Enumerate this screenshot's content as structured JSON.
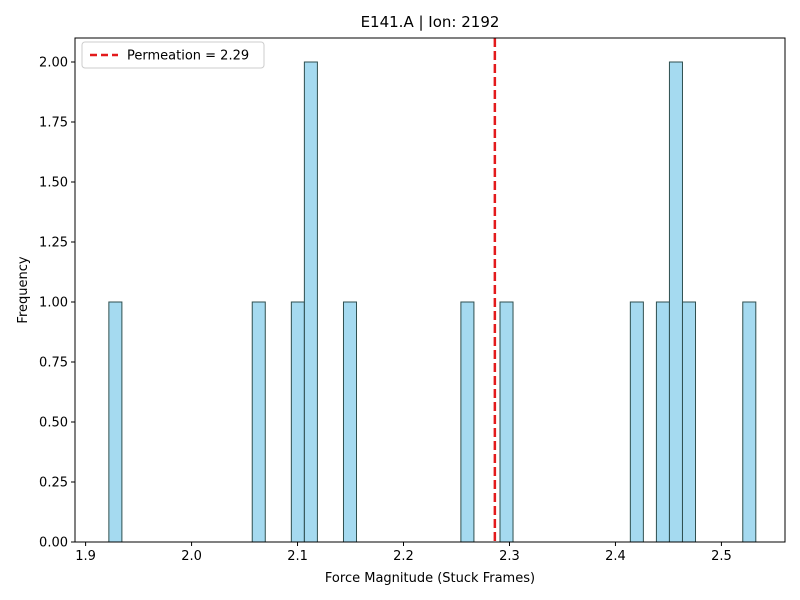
{
  "chart_data": {
    "type": "bar",
    "subtype": "histogram",
    "title": "E141.A | Ion: 2192",
    "xlabel": "Force Magnitude (Stuck Frames)",
    "ylabel": "Frequency",
    "xlim": [
      1.89,
      2.56
    ],
    "ylim": [
      0.0,
      2.1
    ],
    "x_ticks": [
      "1.9",
      "2.0",
      "2.1",
      "2.2",
      "2.3",
      "2.4",
      "2.5"
    ],
    "y_ticks": [
      "0.00",
      "0.25",
      "0.50",
      "0.75",
      "1.00",
      "1.25",
      "1.50",
      "1.75",
      "2.00"
    ],
    "bin_width": 0.0123,
    "bars": [
      {
        "x": 1.9281,
        "count": 1
      },
      {
        "x": 2.0634,
        "count": 1
      },
      {
        "x": 2.1003,
        "count": 1
      },
      {
        "x": 2.1126,
        "count": 2
      },
      {
        "x": 2.1495,
        "count": 1
      },
      {
        "x": 2.2603,
        "count": 1
      },
      {
        "x": 2.2972,
        "count": 1
      },
      {
        "x": 2.4202,
        "count": 1
      },
      {
        "x": 2.4448,
        "count": 1
      },
      {
        "x": 2.4571,
        "count": 2
      },
      {
        "x": 2.4694,
        "count": 1
      },
      {
        "x": 2.5263,
        "count": 1
      }
    ],
    "reference_line": {
      "x": 2.2862,
      "label": "Permeation = 2.29",
      "color": "#e31a1c",
      "style": "dashed"
    },
    "bar_color": "#87ceeb",
    "bar_edge_color": "#2f4f4f",
    "legend_position": "top-left",
    "grid": false
  }
}
